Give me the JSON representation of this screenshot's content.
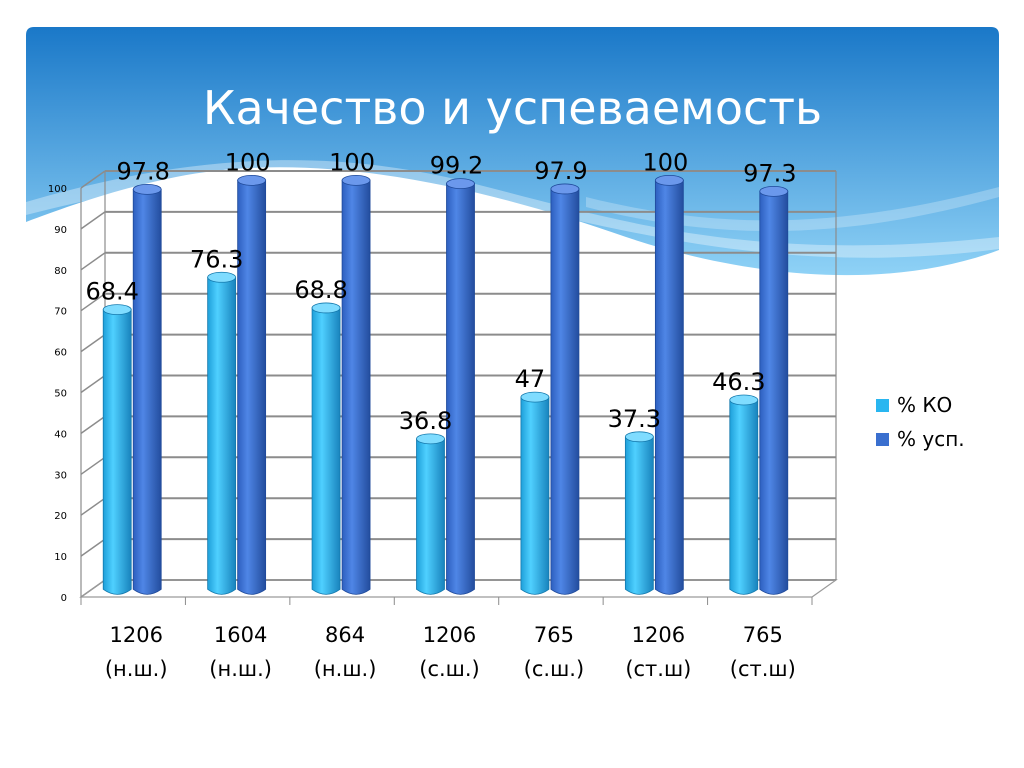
{
  "slide": {
    "title": "Качество и успеваемость",
    "colors": {
      "banner_top": "#1a78c8",
      "banner_bottom": "#8fd2f6",
      "ko": "#29b6f0",
      "usp": "#3a6fcf"
    }
  },
  "chart_data": {
    "type": "bar",
    "title": "",
    "xlabel": "",
    "ylabel": "",
    "ylim": [
      0,
      100
    ],
    "yticks": [
      "0",
      "10",
      "20",
      "30",
      "40",
      "50",
      "60",
      "70",
      "80",
      "90",
      "100"
    ],
    "grid": true,
    "legend_position": "right",
    "categories": [
      [
        "1206",
        "(н.ш.)"
      ],
      [
        "1604",
        "(н.ш.)"
      ],
      [
        "864",
        "(н.ш.)"
      ],
      [
        "1206",
        "(с.ш.)"
      ],
      [
        "765",
        "(с.ш.)"
      ],
      [
        "1206",
        "(ст.ш)"
      ],
      [
        "765",
        "(ст.ш)"
      ]
    ],
    "series": [
      {
        "name": "% КО",
        "values": [
          68.4,
          76.3,
          68.8,
          36.8,
          47,
          37.3,
          46.3
        ],
        "labels": [
          "68.4",
          "76.3",
          "68.8",
          "36.8",
          "47",
          "37.3",
          "46.3"
        ]
      },
      {
        "name": "% усп.",
        "values": [
          97.8,
          100,
          100,
          99.2,
          97.9,
          100,
          97.3
        ],
        "labels": [
          "97.8",
          "100",
          "100",
          "99.2",
          "97.9",
          "100",
          "97.3"
        ]
      }
    ]
  }
}
